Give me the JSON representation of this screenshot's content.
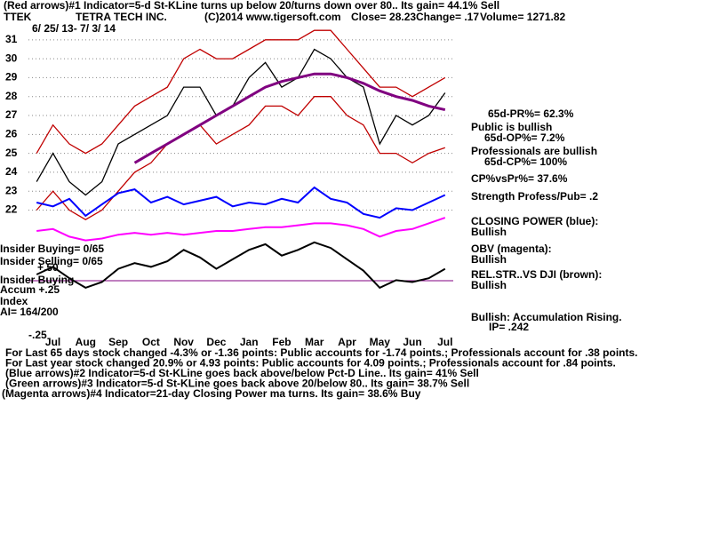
{
  "chart_data": {
    "type": "line",
    "header": [
      "(Red arrows)#1 Indicator=5-d St-KLine turns up below 20/turns down over 80.. Its gain= 44.1% Sell",
      "TTEK",
      "TETRA TECH INC.",
      "(C)2014 www.tigersoft.com",
      "Close=  28.23",
      "Change= .17",
      "Volume= 1271.82"
    ],
    "subtitle": "6/ 25/ 13- 7/ 3/ 14",
    "categories": [
      null,
      "Jul",
      null,
      "Aug",
      null,
      "Sep",
      null,
      "Oct",
      null,
      "Nov",
      null,
      "Dec",
      null,
      "Jan",
      null,
      "Feb",
      null,
      "Mar",
      null,
      "Apr",
      null,
      "May",
      null,
      "Jun",
      null,
      "Jul"
    ],
    "ylim": [
      15.5,
      32.4
    ],
    "yticks": [
      22,
      23,
      24,
      25,
      26,
      27,
      28,
      29,
      30,
      31
    ],
    "grid": true,
    "series": [
      {
        "color": "#000000",
        "values": [
          23.5,
          25,
          23.5,
          22.8,
          23.5,
          25.5,
          26,
          26.5,
          27,
          28.5,
          28.5,
          27,
          27.5,
          29,
          29.8,
          28.5,
          29,
          30.5,
          30,
          29,
          28.5,
          25.5,
          27,
          26.5,
          27,
          28.2
        ]
      },
      {
        "color": "#c00000",
        "values": [
          25,
          26.5,
          25.5,
          25,
          25.5,
          26.5,
          27.5,
          28,
          28.5,
          30,
          30.5,
          30,
          30,
          30.5,
          31,
          31,
          31,
          31.5,
          31.5,
          30.5,
          29.5,
          28.5,
          28.5,
          28,
          28.5,
          29
        ]
      },
      {
        "color": "#c00000",
        "values": [
          22,
          23,
          22,
          21.5,
          22,
          23,
          24,
          24.5,
          25.5,
          26,
          26.5,
          25.5,
          26,
          26.5,
          27.5,
          27.5,
          27,
          28,
          28,
          27,
          26.5,
          25,
          25,
          24.5,
          25,
          25.3
        ]
      },
      {
        "color": "#800080",
        "values": [
          null,
          null,
          null,
          null,
          null,
          null,
          24.5,
          25,
          25.5,
          26,
          26.5,
          27,
          27.5,
          28,
          28.5,
          28.8,
          29,
          29.2,
          29.2,
          29,
          28.7,
          28.3,
          28,
          27.8,
          27.5,
          27.3
        ]
      },
      {
        "color": "#0000ff",
        "values": [
          22.4,
          22.2,
          22.6,
          21.7,
          22.3,
          22.9,
          23.1,
          22.4,
          22.7,
          22.3,
          22.5,
          22.7,
          22.2,
          22.4,
          22.3,
          22.6,
          22.4,
          23.2,
          22.6,
          22.4,
          21.8,
          21.6,
          22.1,
          22.0,
          22.4,
          22.8
        ]
      },
      {
        "color": "#ff00ff",
        "values": [
          20.9,
          21.0,
          20.6,
          20.4,
          20.5,
          20.7,
          20.8,
          20.7,
          20.8,
          20.7,
          20.8,
          20.9,
          20.9,
          21.0,
          21.1,
          21.1,
          21.2,
          21.3,
          21.3,
          21.2,
          21.0,
          20.6,
          20.9,
          21.0,
          21.3,
          21.6
        ]
      },
      {
        "color": "#000000",
        "values": [
          18.6,
          19.0,
          18.4,
          17.9,
          18.2,
          18.9,
          19.2,
          19.0,
          19.3,
          19.9,
          19.5,
          18.9,
          19.4,
          19.9,
          20.2,
          19.6,
          19.9,
          20.3,
          20.0,
          19.4,
          18.8,
          17.9,
          18.3,
          18.2,
          18.4,
          18.9
        ]
      }
    ],
    "left_labels": [
      "Insider Buying= 0/65",
      "Insider Selling= 0/65",
      "+.50",
      "Insider Buying",
      "Accum  +.25",
      "Index",
      "AI= 164/200",
      "-.25"
    ],
    "right_notes": [
      "65d-PR%= 62.3%",
      "Public is bullish",
      "65d-OP%= 7.2%",
      "Professionals are bullish",
      "65d-CP%= 100%",
      "CP%vsPr%=  37.6%",
      "Strength Profess/Pub= .2",
      "CLOSING POWER (blue):",
      "Bullish",
      "OBV (magenta):",
      "Bullish",
      "REL.STR..VS DJI (brown):",
      "Bullish",
      "Bullish: Accumulation Rising.",
      "IP=  .242"
    ],
    "notes": [
      "For Last 65 days stock changed -4.3% or -1.36 points:  Public accounts for -1.74 points.;  Professionals account for  .38 points.",
      "For Last year stock changed  20.9% or  4.93 points:  Public accounts for  4.09 points.;  Professionals account for  .84 points.",
      "(Blue arrows)#2 Indicator=5-d St-KLine goes back above/below Pct-D Line.. Its gain= 41% Sell",
      "(Green arrows)#3 Indicator=5-d St-KLine goes back above 20/below 80.. Its gain= 38.7% Sell",
      "(Magenta arrows)#4 Indicator=21-day Closing Power ma turns. Its gain= 38.6% Buy"
    ]
  }
}
